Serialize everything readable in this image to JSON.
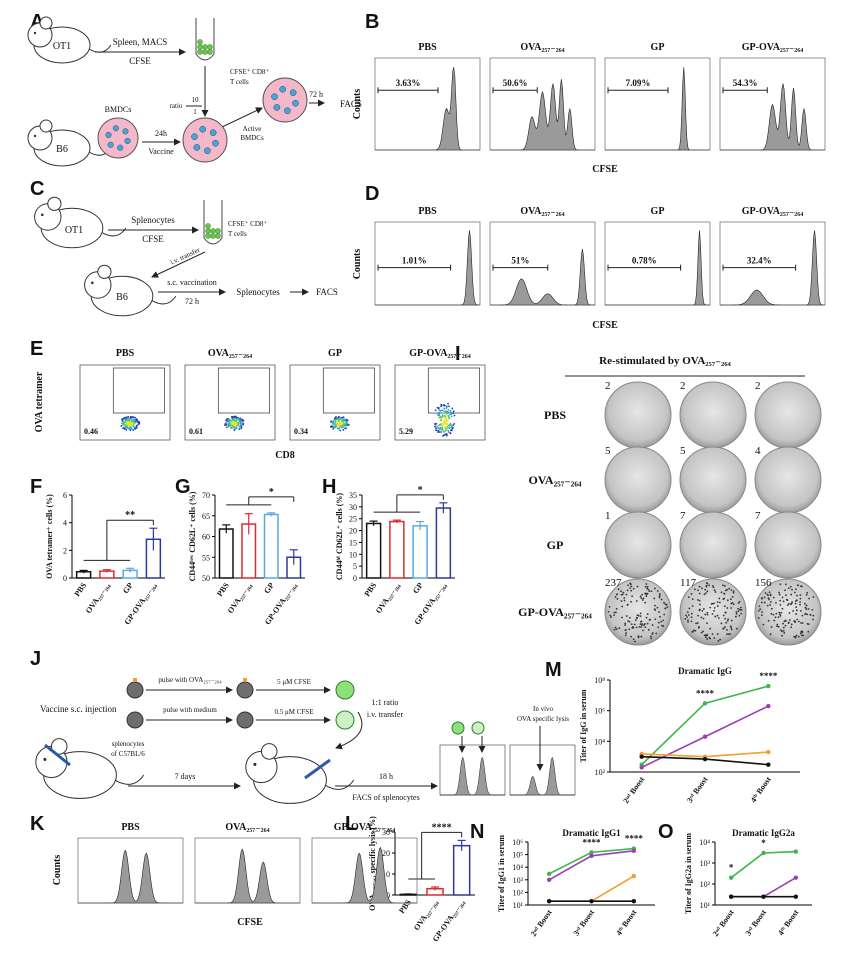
{
  "panel_A": {
    "letter": "A",
    "texts": [
      "OT1",
      "Spleen, MACS",
      "CFSE",
      "CFSE⁺ CD8⁺",
      "T cells",
      "ratio",
      "10",
      "1",
      "Active",
      "BMDCs",
      "72 h",
      "FACS",
      "B6",
      "BMDCs",
      "24h",
      "Vaccine"
    ]
  },
  "panel_B": {
    "letter": "B",
    "groups": [
      "PBS",
      "OVA₂₅₇₋₂₆₄",
      "GP",
      "GP-OVA₂₅₇₋₂₆₄"
    ],
    "gates": [
      "3.63%",
      "50.6%",
      "7.09%",
      "54.3%"
    ],
    "y_label": "Counts",
    "x_label": "CFSE"
  },
  "panel_C": {
    "letter": "C",
    "texts": [
      "OT1",
      "Splenocytes",
      "CFSE",
      "CFSE⁺ CD8⁺",
      "T cells",
      "i.v. transfer",
      "B6",
      "s.c. vaccination",
      "72 h",
      "Splenocytes",
      "FACS"
    ]
  },
  "panel_D": {
    "letter": "D",
    "groups": [
      "PBS",
      "OVA₂₅₇₋₂₆₄",
      "GP",
      "GP-OVA₂₅₇₋₂₆₄"
    ],
    "gates": [
      "1.01%",
      "51%",
      "0.78%",
      "32.4%"
    ],
    "y_label": "Counts",
    "x_label": "CFSE"
  },
  "panel_E": {
    "letter": "E",
    "groups": [
      "PBS",
      "OVA₂₅₇₋₂₆₄",
      "GP",
      "GP-OVA₂₅₇₋₂₆₄"
    ],
    "gates": [
      "0.46",
      "0.61",
      "0.34",
      "5.29"
    ],
    "y_label": "OVA tetramer",
    "x_label": "CD8"
  },
  "panel_I": {
    "letter": "I",
    "title": "Re-stimulated by OVA₂₅₇₋₂₆₄",
    "rows": [
      {
        "label": "PBS",
        "counts": [
          2,
          2,
          2
        ]
      },
      {
        "label": "OVA₂₅₇₋₂₆₄",
        "counts": [
          5,
          5,
          4
        ]
      },
      {
        "label": "GP",
        "counts": [
          1,
          7,
          7
        ]
      },
      {
        "label": "GP-OVA₂₅₇₋₂₆₄",
        "counts": [
          237,
          117,
          156
        ]
      }
    ]
  },
  "panel_J": {
    "letter": "J",
    "texts": [
      "Vaccine s.c. injection",
      "pulse with OVA₂₅₇₋₂₆₄",
      "pulse with medium",
      "5 μM CFSE",
      "0.5 μM CFSE",
      "splenocytes",
      "of C57BL/6",
      "1:1 ratio",
      "i.v. transfer",
      "7 days",
      "18 h",
      "FACS of splenocytes",
      "In vivo",
      "OVA specific lysis"
    ]
  },
  "panel_K": {
    "letter": "K",
    "groups": [
      "PBS",
      "OVA₂₅₇₋₂₆₄",
      "GP-OVA₂₅₇₋₂₆₄"
    ],
    "y_label": "Counts",
    "x_label": "CFSE"
  },
  "chart_data": [
    {
      "panel": "F",
      "type": "bar",
      "y_label": "OVA tetramer⁺ cells (%)",
      "categories": [
        "PBS",
        "OVA₂₅₇₋₂₆₄",
        "GP",
        "GP-OVA₂₅₇₋₂₆₄"
      ],
      "values": [
        0.45,
        0.5,
        0.55,
        2.8
      ],
      "errors": [
        0.1,
        0.1,
        0.15,
        0.8
      ],
      "colors": [
        "#111111",
        "#e0282e",
        "#5aa9e6",
        "#2b3a9c"
      ],
      "ylim": [
        0,
        6
      ],
      "yticks": [
        0,
        2,
        4,
        6
      ],
      "significance": "**"
    },
    {
      "panel": "G",
      "type": "bar",
      "y_label": "CD44ˡᵒʷ CD62L⁺ cells (%)",
      "categories": [
        "PBS",
        "OVA₂₅₇₋₂₆₄",
        "GP",
        "GP-OVA₂₅₇₋₂₆₄"
      ],
      "values": [
        61.8,
        63,
        65.3,
        55
      ],
      "errors": [
        1,
        2.5,
        0.4,
        1.8
      ],
      "colors": [
        "#111111",
        "#e0282e",
        "#5aa9e6",
        "#2b3a9c"
      ],
      "ylim": [
        50,
        70
      ],
      "yticks": [
        50,
        55,
        60,
        65,
        70
      ],
      "significance": "*"
    },
    {
      "panel": "H",
      "type": "bar",
      "y_label": "CD44ʰⁱ CD62L⁺ cells (%)",
      "categories": [
        "PBS",
        "OVA₂₅₇₋₂₆₄",
        "GP",
        "GP-OVA₂₅₇₋₂₆₄"
      ],
      "values": [
        23,
        23.8,
        22,
        29.5
      ],
      "errors": [
        1,
        0.6,
        1.8,
        2.2
      ],
      "colors": [
        "#111111",
        "#e0282e",
        "#5aa9e6",
        "#2b3a9c"
      ],
      "ylim": [
        0,
        35
      ],
      "yticks": [
        0,
        5,
        10,
        15,
        20,
        25,
        30,
        35
      ],
      "significance": "*"
    },
    {
      "panel": "L",
      "type": "bar",
      "y_label": "OVA₂₅₇₋₂₆₄ specific lysis (%)",
      "categories": [
        "PBS",
        "OVA₂₅₇₋₂₆₄",
        "GP-OVA₂₅₇₋₂₆₄"
      ],
      "values": [
        0.3,
        3,
        23.5
      ],
      "errors": [
        0.2,
        0.8,
        2.5
      ],
      "colors": [
        "#111111",
        "#e0282e",
        "#2b3a9c"
      ],
      "ylim": [
        0,
        30
      ],
      "yticks": [
        0,
        10,
        20,
        30
      ],
      "significance": "****"
    },
    {
      "panel": "M",
      "type": "line",
      "title": "Dramatic IgG",
      "y_label": "Titer of IgG in serum",
      "log": true,
      "categories": [
        "2ⁿᵈ Boost",
        "3ʳᵈ Boost",
        "4ᵗʰ Boost"
      ],
      "ylim": [
        100,
        100000000
      ],
      "yticks": [
        {
          "value": 100,
          "label": "10²"
        },
        {
          "value": 10000,
          "label": "10⁴"
        },
        {
          "value": 1000000,
          "label": "10⁶"
        },
        {
          "value": 100000000,
          "label": "10⁸"
        }
      ],
      "series": [
        {
          "color": "#3cb54a",
          "values": [
            300,
            3000000,
            40000000
          ]
        },
        {
          "color": "#9b3fb5",
          "values": [
            200,
            20000,
            2000000
          ]
        },
        {
          "color": "#f0a030",
          "values": [
            1500,
            1000,
            2000
          ]
        },
        {
          "color": "#111111",
          "values": [
            1000,
            700,
            300
          ]
        }
      ],
      "annotations": [
        null,
        "****",
        "****"
      ]
    },
    {
      "panel": "N",
      "type": "line",
      "title": "Dramatic IgG1",
      "y_label": "Titer of IgG1 in serum",
      "log": true,
      "categories": [
        "2ⁿᵈ Boost",
        "3ʳᵈ Boost",
        "4ᵗʰ Boost"
      ],
      "ylim": [
        10,
        1000000
      ],
      "yticks": [
        {
          "value": 10,
          "label": "10¹"
        },
        {
          "value": 100,
          "label": "10²"
        },
        {
          "value": 1000,
          "label": "10³"
        },
        {
          "value": 10000,
          "label": "10⁴"
        },
        {
          "value": 100000,
          "label": "10⁵"
        },
        {
          "value": 1000000,
          "label": "10⁶"
        }
      ],
      "series": [
        {
          "color": "#3cb54a",
          "values": [
            3000,
            150000,
            300000
          ]
        },
        {
          "color": "#9b3fb5",
          "values": [
            1000,
            80000,
            200000
          ]
        },
        {
          "color": "#f0a030",
          "values": [
            20,
            20,
            2000
          ]
        },
        {
          "color": "#111111",
          "values": [
            20,
            20,
            20
          ]
        }
      ],
      "annotations": [
        null,
        "****",
        "****"
      ]
    },
    {
      "panel": "O",
      "type": "line",
      "title": "Dramatic IgG2a",
      "y_label": "Titer of IgG2a in serum",
      "log": true,
      "categories": [
        "2ⁿᵈ Boost",
        "3ʳᵈ Boost",
        "4ᵗʰ Boost"
      ],
      "ylim": [
        10,
        10000
      ],
      "yticks": [
        {
          "value": 10,
          "label": "10¹"
        },
        {
          "value": 100,
          "label": "10²"
        },
        {
          "value": 1000,
          "label": "10³"
        },
        {
          "value": 10000,
          "label": "10⁴"
        }
      ],
      "series": [
        {
          "color": "#3cb54a",
          "values": [
            200,
            3000,
            3500
          ]
        },
        {
          "color": "#9b3fb5",
          "values": [
            25,
            25,
            200
          ]
        },
        {
          "color": "#111111",
          "values": [
            25,
            25,
            25
          ]
        }
      ],
      "annotations": [
        "*",
        "*",
        null
      ]
    }
  ]
}
